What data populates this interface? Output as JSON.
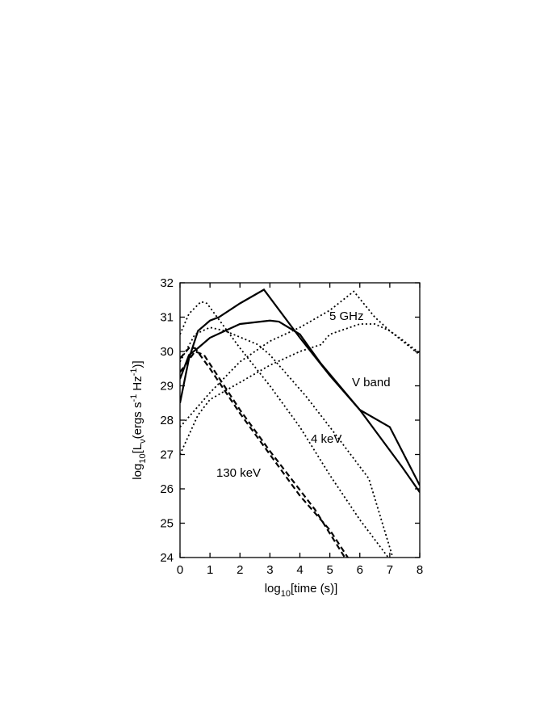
{
  "chart_data": {
    "type": "line",
    "x_label": [
      "log",
      "10",
      "[time (s)]"
    ],
    "y_label": [
      "log",
      "10",
      "[L",
      "ν",
      "(ergs s",
      "-1",
      " Hz",
      "-1",
      ")]"
    ],
    "annotations": [
      "5 GHz",
      "V band",
      "4 keV",
      "130 keV"
    ],
    "xlim": [
      0,
      8
    ],
    "xticks": [
      0,
      1,
      2,
      3,
      4,
      5,
      6,
      7,
      8
    ],
    "ylim": [
      24,
      32
    ],
    "yticks": [
      24,
      25,
      26,
      27,
      28,
      29,
      30,
      31,
      32
    ],
    "grid": false,
    "series": [
      {
        "color": "#000000",
        "dash": "solid",
        "x": [
          0,
          0.3,
          0.6,
          1,
          1.3,
          2,
          2.8,
          4,
          5,
          6,
          7,
          8
        ],
        "values": [
          28.5,
          29.8,
          30.6,
          30.9,
          31.0,
          31.4,
          31.8,
          30.4,
          29.3,
          28.3,
          27.8,
          26.1
        ]
      },
      {
        "color": "#000000",
        "dash": "solid",
        "x": [
          0,
          0.3,
          0.6,
          1,
          2,
          3,
          3.3,
          4,
          4.7,
          6,
          7.4,
          8
        ],
        "values": [
          29.2,
          29.9,
          30.1,
          30.4,
          30.8,
          30.9,
          30.87,
          30.5,
          29.65,
          28.3,
          26.65,
          25.9
        ]
      },
      {
        "color": "#000000",
        "dash": "dotted",
        "x": [
          0,
          0.6,
          1,
          2,
          3,
          4,
          4.7,
          5,
          6,
          6.5,
          7,
          7.4,
          8
        ],
        "values": [
          27,
          28.15,
          28.6,
          29.1,
          29.6,
          30.0,
          30.2,
          30.5,
          30.8,
          30.8,
          30.6,
          30.35,
          29.95
        ]
      },
      {
        "color": "#000000",
        "dash": "dotted",
        "x": [
          0,
          1,
          2,
          3,
          4,
          5,
          5.8,
          6.5,
          7,
          8
        ],
        "values": [
          27.8,
          28.8,
          29.7,
          30.3,
          30.7,
          31.2,
          31.75,
          31.0,
          30.6,
          29.9
        ]
      },
      {
        "color": "#000000",
        "dash": "dotted",
        "x": [
          0,
          0.3,
          0.7,
          0.9,
          2,
          3,
          4,
          5,
          6,
          6.95
        ],
        "values": [
          30.5,
          31.1,
          31.45,
          31.4,
          30.1,
          29.0,
          27.8,
          26.4,
          25.1,
          24
        ]
      },
      {
        "color": "#000000",
        "dash": "dotted",
        "x": [
          0,
          0.5,
          1,
          1.5,
          2.6,
          3,
          4.2,
          5,
          6.3,
          7.1
        ],
        "values": [
          29.7,
          30.5,
          30.7,
          30.6,
          30.2,
          29.9,
          28.7,
          27.8,
          26.3,
          24
        ]
      },
      {
        "color": "#000000",
        "dash": "dashed",
        "x": [
          0,
          0.3,
          0.5,
          1,
          2,
          3,
          4,
          5,
          5.6
        ],
        "values": [
          29.8,
          30.1,
          30.1,
          29.5,
          28.2,
          27.0,
          25.8,
          24.8,
          24
        ]
      },
      {
        "color": "#000000",
        "dash": "dashed",
        "x": [
          0,
          0.5,
          0.8,
          2,
          3,
          4.5,
          5.5
        ],
        "values": [
          29.4,
          30.0,
          29.9,
          28.3,
          27.1,
          25.4,
          24
        ]
      }
    ]
  }
}
